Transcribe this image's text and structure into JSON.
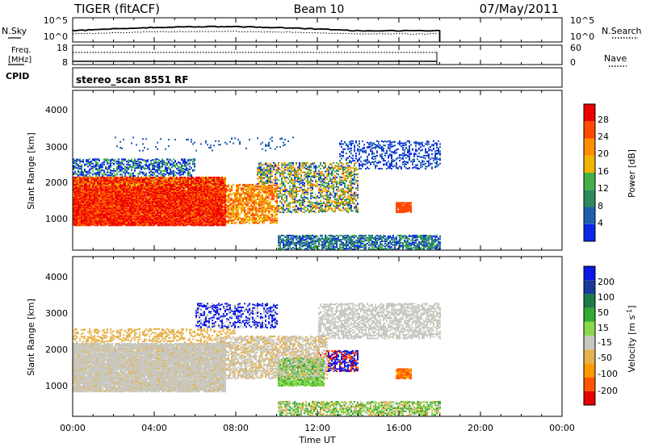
{
  "header": {
    "radar": "TIGER (fitACF)",
    "beam": "Beam 10",
    "date": "07/May/2011",
    "cpid_label": "CPID",
    "program": "stereo_scan 8551 RF"
  },
  "noise_panel": {
    "left_label": "N.Sky",
    "right_label": "N.Search",
    "left_ticks": [
      "10^5",
      "10^0"
    ],
    "right_ticks": [
      "10^5",
      "10^0"
    ]
  },
  "freq_panel": {
    "left_label_1": "Freq.",
    "left_label_2": "[MHz]",
    "right_label": "Nave",
    "left_ticks": [
      "18",
      "8"
    ],
    "right_ticks": [
      "60",
      "0"
    ]
  },
  "colors": {
    "power_scale": [
      "#0a28e6",
      "#1f5fb0",
      "#2e8a5a",
      "#44b04a",
      "#f0b400",
      "#ff8c00",
      "#ff4a00",
      "#ee0000"
    ],
    "velocity_scale": [
      "#e60000",
      "#ff5500",
      "#ff9900",
      "#e6b24c",
      "#c8c8c0",
      "#8ad84a",
      "#33aa33",
      "#1f7a4a",
      "#1a3a9a",
      "#0a1ae6"
    ]
  },
  "chart_data": [
    {
      "type": "heatmap",
      "name": "power",
      "ylabel": "Slant Range [km]",
      "yticks": [
        "1000",
        "2000",
        "3000",
        "4000"
      ],
      "ylim": [
        200,
        4600
      ],
      "colorbar_label": "Power [dB]",
      "colorbar_ticks": [
        "4",
        "8",
        "12",
        "16",
        "20",
        "24",
        "28"
      ]
    },
    {
      "type": "heatmap",
      "name": "velocity",
      "ylabel": "Slant Range [km]",
      "yticks": [
        "1000",
        "2000",
        "3000",
        "4000"
      ],
      "ylim": [
        200,
        4600
      ],
      "colorbar_label": "Velocity [m s^-1]",
      "colorbar_ticks": [
        "-200",
        "-100",
        "-50",
        "-15",
        "15",
        "50",
        "100",
        "200"
      ]
    }
  ],
  "time_axis": {
    "label": "Time UT",
    "ticks": [
      "00:00",
      "04:00",
      "08:00",
      "12:00",
      "16:00",
      "20:00",
      "00:00"
    ],
    "xlim_hours": [
      0,
      24
    ],
    "data_end_hour": 18
  }
}
